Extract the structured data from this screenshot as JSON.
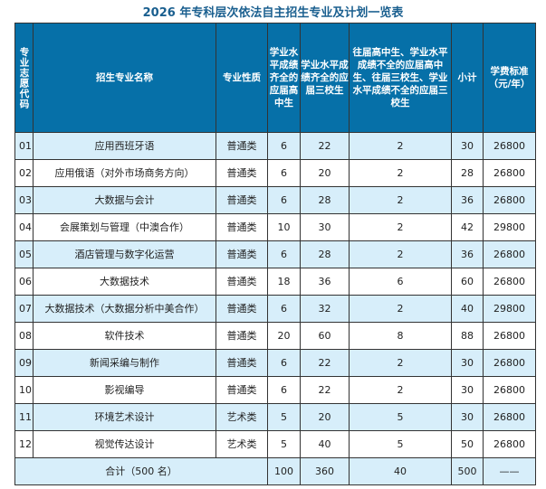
{
  "title": "2026 年专科层次依法自主招生专业及计划一览表",
  "headers": [
    "专业志愿代码",
    "招生专业名称",
    "专业性质",
    "学业水平成绩齐全的应届高中生",
    "学业水平成绩齐全的应届三校生",
    "往届高中生、学业水平成绩不全的应届高中生、往届三校生、学业水平成绩不全的应届三校生",
    "小计",
    "学费标准（元/年）"
  ],
  "rows": [
    [
      "01",
      "应用西班牙语",
      "普通类",
      "6",
      "22",
      "2",
      "30",
      "26800"
    ],
    [
      "02",
      "应用俄语（对外市场商务方向）",
      "普通类",
      "6",
      "20",
      "2",
      "28",
      "26800"
    ],
    [
      "03",
      "大数据与会计",
      "普通类",
      "6",
      "28",
      "2",
      "36",
      "26800"
    ],
    [
      "04",
      "会展策划与管理（中澳合作）",
      "普通类",
      "10",
      "30",
      "2",
      "42",
      "29800"
    ],
    [
      "05",
      "酒店管理与数字化运营",
      "普通类",
      "6",
      "28",
      "2",
      "36",
      "26800"
    ],
    [
      "06",
      "大数据技术",
      "普通类",
      "18",
      "36",
      "6",
      "60",
      "26800"
    ],
    [
      "07",
      "大数据技术（大数据分析中美合作）",
      "普通类",
      "6",
      "32",
      "2",
      "40",
      "29800"
    ],
    [
      "08",
      "软件技术",
      "普通类",
      "20",
      "60",
      "8",
      "88",
      "26800"
    ],
    [
      "09",
      "新闻采编与制作",
      "普通类",
      "6",
      "22",
      "2",
      "30",
      "26800"
    ],
    [
      "10",
      "影视编导",
      "普通类",
      "6",
      "22",
      "2",
      "30",
      "26800"
    ],
    [
      "11",
      "环境艺术设计",
      "艺术类",
      "5",
      "20",
      "5",
      "30",
      "26800"
    ],
    [
      "12",
      "视觉传达设计",
      "艺术类",
      "5",
      "40",
      "5",
      "50",
      "26800"
    ]
  ],
  "total": {
    "label": "合计（500 名）",
    "c1": "100",
    "c2": "360",
    "c3": "40",
    "sum": "500",
    "fee": "——"
  }
}
